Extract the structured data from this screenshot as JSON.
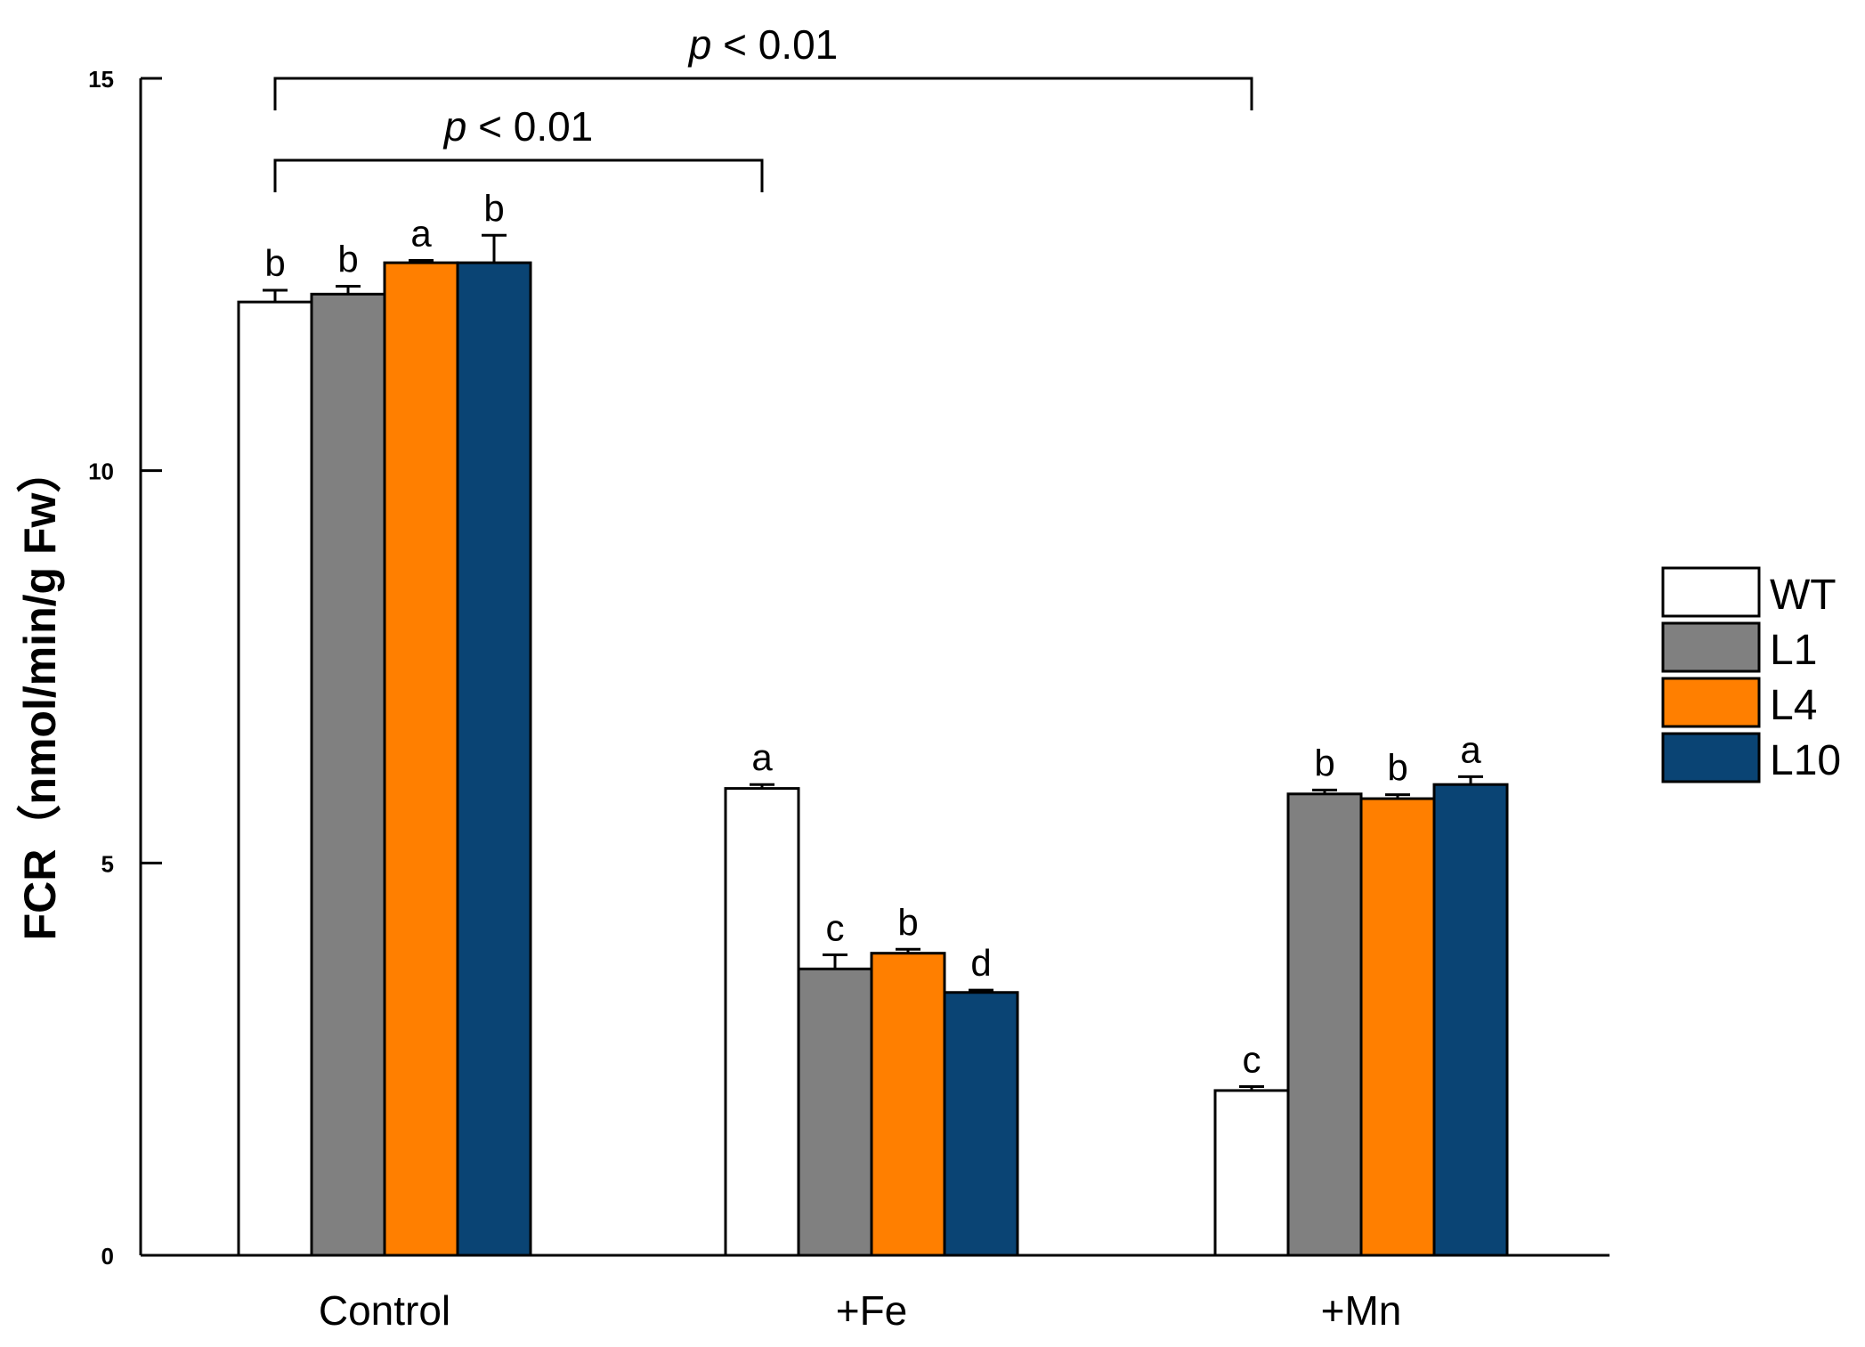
{
  "chart_data": {
    "type": "bar",
    "title": "",
    "xlabel": "",
    "ylabel": "FCR（nmol/min/g Fw）",
    "ylim": [
      0,
      15
    ],
    "yticks": [
      "0",
      "5",
      "10",
      "15"
    ],
    "categories": [
      "Control",
      "+Fe",
      "+Mn"
    ],
    "series": [
      {
        "name": "WT",
        "color": "#ffffff",
        "values": [
          12.15,
          5.95,
          2.1
        ],
        "errors": [
          0.15,
          0.05,
          0.05
        ],
        "letters": [
          "b",
          "a",
          "c"
        ]
      },
      {
        "name": "L1",
        "color": "#808080",
        "values": [
          12.25,
          3.65,
          5.88
        ],
        "errors": [
          0.1,
          0.18,
          0.05
        ],
        "letters": [
          "b",
          "c",
          "b"
        ]
      },
      {
        "name": "L4",
        "color": "#ff7f00",
        "values": [
          12.65,
          3.85,
          5.82
        ],
        "errors": [
          0.03,
          0.05,
          0.05
        ],
        "letters": [
          "a",
          "b",
          "b"
        ]
      },
      {
        "name": "L10",
        "color": "#0a4474",
        "values": [
          12.65,
          3.35,
          6.0
        ],
        "errors": [
          0.35,
          0.03,
          0.1
        ],
        "letters": [
          "b",
          "d",
          "a"
        ]
      }
    ],
    "comparisons": [
      {
        "label_italic": "p",
        "label_rest": " < 0.01",
        "from": "Control",
        "to": "+Fe"
      },
      {
        "label_italic": "p",
        "label_rest": " < 0.01",
        "from": "Control",
        "to": "+Mn"
      }
    ],
    "legend_position": "right"
  }
}
